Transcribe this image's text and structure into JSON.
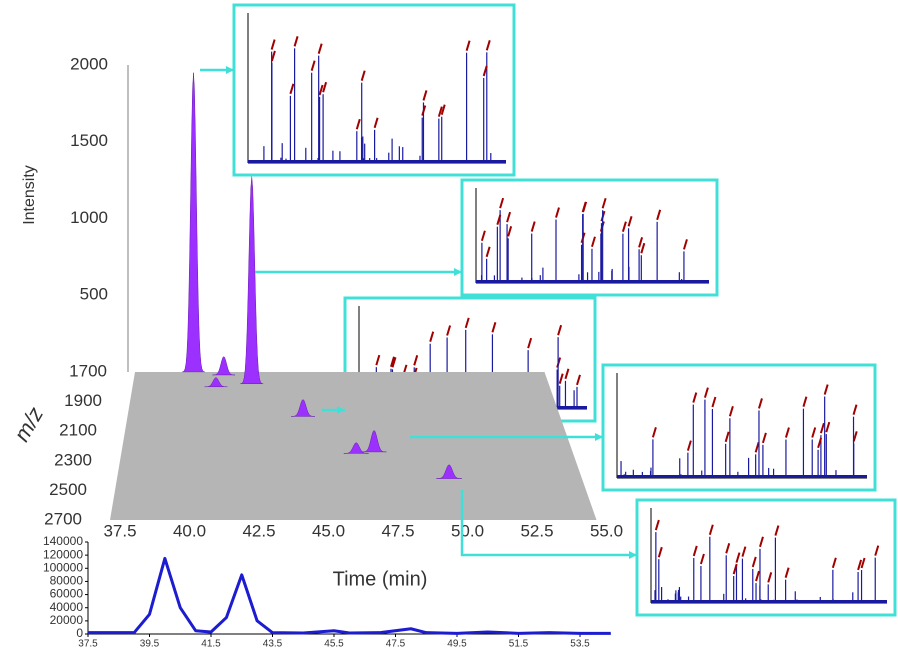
{
  "chart_data": [
    {
      "type": "peaks3d",
      "x_label": "Time (min)",
      "y_label": "Intensity",
      "z_label": "m/z",
      "color": "#9b30ff",
      "xlim": [
        37.5,
        55
      ],
      "xticks": [
        37.5,
        {
          "value": 40,
          "label": "40.0"
        },
        42.5,
        {
          "value": 45,
          "label": "45.0"
        },
        47.5,
        {
          "value": 50,
          "label": "50.0"
        },
        52.5,
        {
          "value": 55,
          "label": "55.0"
        }
      ],
      "ylim": [
        0,
        2000
      ],
      "yticks": [
        500,
        1000,
        1500,
        2000
      ],
      "zlim": [
        1700,
        2700
      ],
      "zticks": [
        1700,
        1900,
        2100,
        2300,
        2500,
        2700
      ],
      "x": [
        40.0,
        41.3,
        42.5,
        41.0,
        44.6,
        46.6,
        47.3,
        50.0
      ],
      "z": [
        1700,
        1720,
        1780,
        1800,
        2000,
        2250,
        2240,
        2420
      ],
      "values": [
        1950,
        120,
        1350,
        60,
        110,
        70,
        140,
        90
      ]
    },
    {
      "type": "line",
      "color": "#1c1cd0",
      "xlim": [
        37.5,
        54.5
      ],
      "xticks": [
        37.5,
        39.5,
        41.5,
        43.5,
        45.5,
        47.5,
        49.5,
        51.5,
        53.5
      ],
      "ylim": [
        0,
        140000
      ],
      "yticks": [
        0,
        20000,
        40000,
        60000,
        80000,
        100000,
        120000,
        140000
      ],
      "x": [
        37.5,
        39.0,
        39.5,
        40.0,
        40.5,
        41.0,
        41.5,
        42.0,
        42.5,
        43.0,
        43.5,
        44.5,
        45.5,
        46.0,
        47.0,
        48.0,
        48.5,
        49.5,
        50.5,
        51.5,
        52.5,
        53.5,
        54.5
      ],
      "values": [
        2000,
        2000,
        30000,
        115000,
        40000,
        5000,
        3000,
        25000,
        90000,
        20000,
        2000,
        1500,
        5000,
        1500,
        2000,
        8000,
        2000,
        1000,
        3000,
        1000,
        2000,
        1000,
        1000
      ]
    }
  ]
}
